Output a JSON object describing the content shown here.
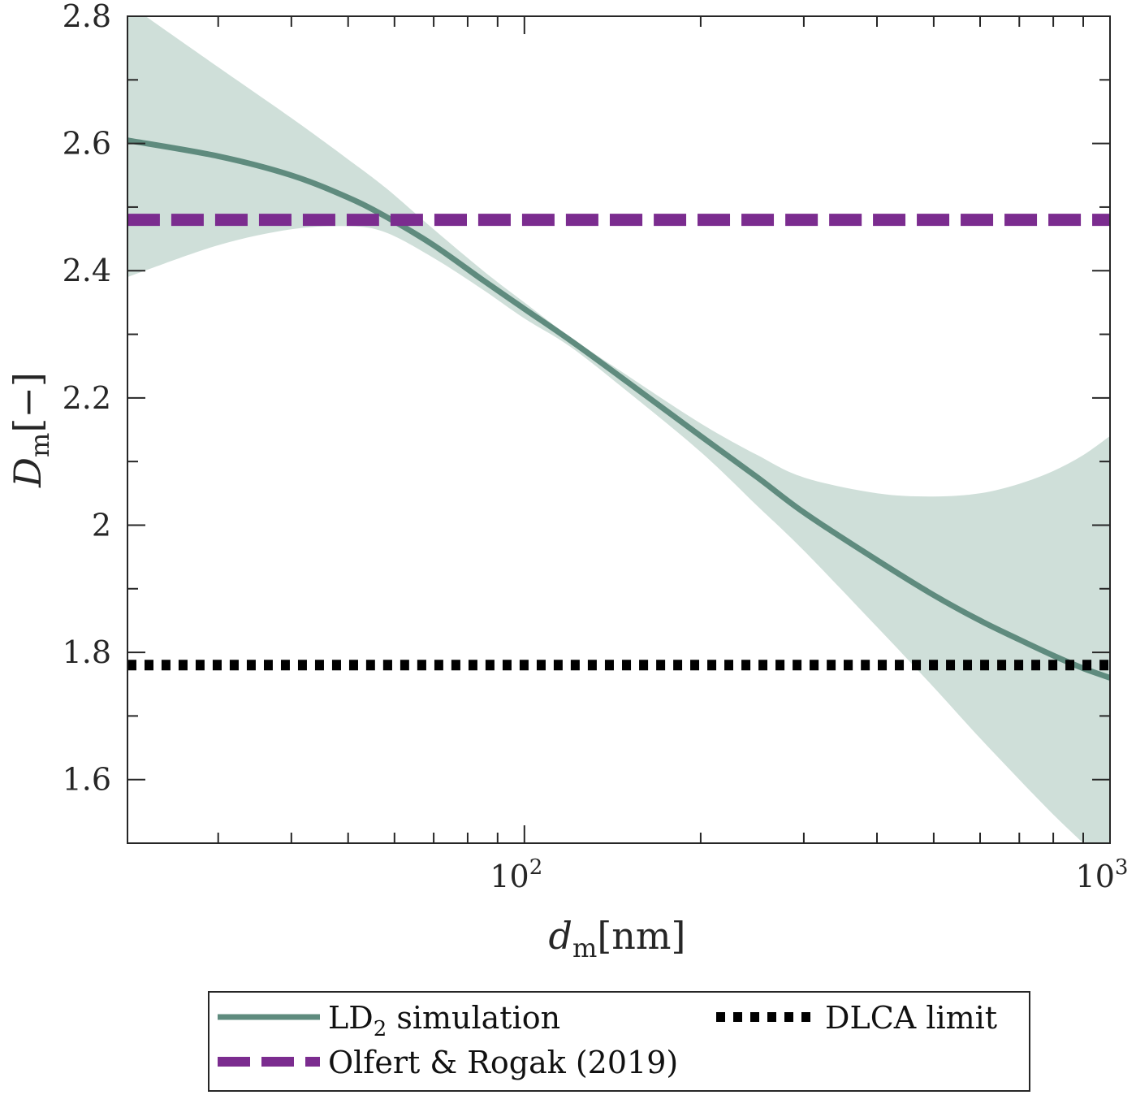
{
  "chart_data": {
    "type": "line",
    "x_scale": "log",
    "xlim": [
      21,
      1000
    ],
    "ylim": [
      1.5,
      2.8
    ],
    "grid": false,
    "legend_position": "below",
    "x_ticks": [
      {
        "value": 100,
        "base": "10",
        "exp": "2"
      },
      {
        "value": 1000,
        "base": "10",
        "exp": "3"
      }
    ],
    "y_ticks": [
      {
        "value": 1.6,
        "label": "1.6"
      },
      {
        "value": 1.8,
        "label": "1.8"
      },
      {
        "value": 2.0,
        "label": "2"
      },
      {
        "value": 2.2,
        "label": "2.2"
      },
      {
        "value": 2.4,
        "label": "2.4"
      },
      {
        "value": 2.6,
        "label": "2.6"
      },
      {
        "value": 2.8,
        "label": "2.8"
      }
    ],
    "xlabel": {
      "main": "d",
      "sub": "m",
      "unit": "[nm]"
    },
    "ylabel": {
      "main": "D",
      "sub": "m",
      "unit": "[−]"
    },
    "series": [
      {
        "name": "LD2 simulation",
        "legend_label": {
          "main": "LD",
          "sub": "2",
          "rest": " simulation"
        },
        "style": "solid",
        "color": "#5f8b7e",
        "x": [
          21,
          30,
          40,
          50,
          58,
          70,
          85,
          100,
          120,
          150,
          200,
          250,
          300,
          400,
          500,
          600,
          700,
          800,
          900,
          1000
        ],
        "y": [
          2.605,
          2.58,
          2.55,
          2.515,
          2.485,
          2.44,
          2.385,
          2.34,
          2.29,
          2.225,
          2.14,
          2.075,
          2.02,
          1.945,
          1.89,
          1.85,
          1.82,
          1.795,
          1.775,
          1.76
        ],
        "band_upper": [
          2.82,
          2.72,
          2.64,
          2.575,
          2.53,
          2.465,
          2.4,
          2.35,
          2.295,
          2.235,
          2.16,
          2.11,
          2.075,
          2.05,
          2.045,
          2.05,
          2.065,
          2.085,
          2.11,
          2.14
        ],
        "band_lower": [
          2.39,
          2.44,
          2.465,
          2.47,
          2.46,
          2.42,
          2.37,
          2.325,
          2.28,
          2.21,
          2.115,
          2.03,
          1.96,
          1.84,
          1.745,
          1.665,
          1.6,
          1.545,
          1.5,
          1.46
        ]
      },
      {
        "name": "Olfert & Rogak (2019)",
        "style": "dashed",
        "color": "#7b2c8f",
        "x": [
          21,
          1000
        ],
        "y": [
          2.48,
          2.48
        ]
      },
      {
        "name": "DLCA limit",
        "style": "dotted",
        "color": "#000000",
        "x": [
          21,
          1000
        ],
        "y": [
          1.78,
          1.78
        ]
      }
    ],
    "band_color": "#cfdfd9"
  }
}
